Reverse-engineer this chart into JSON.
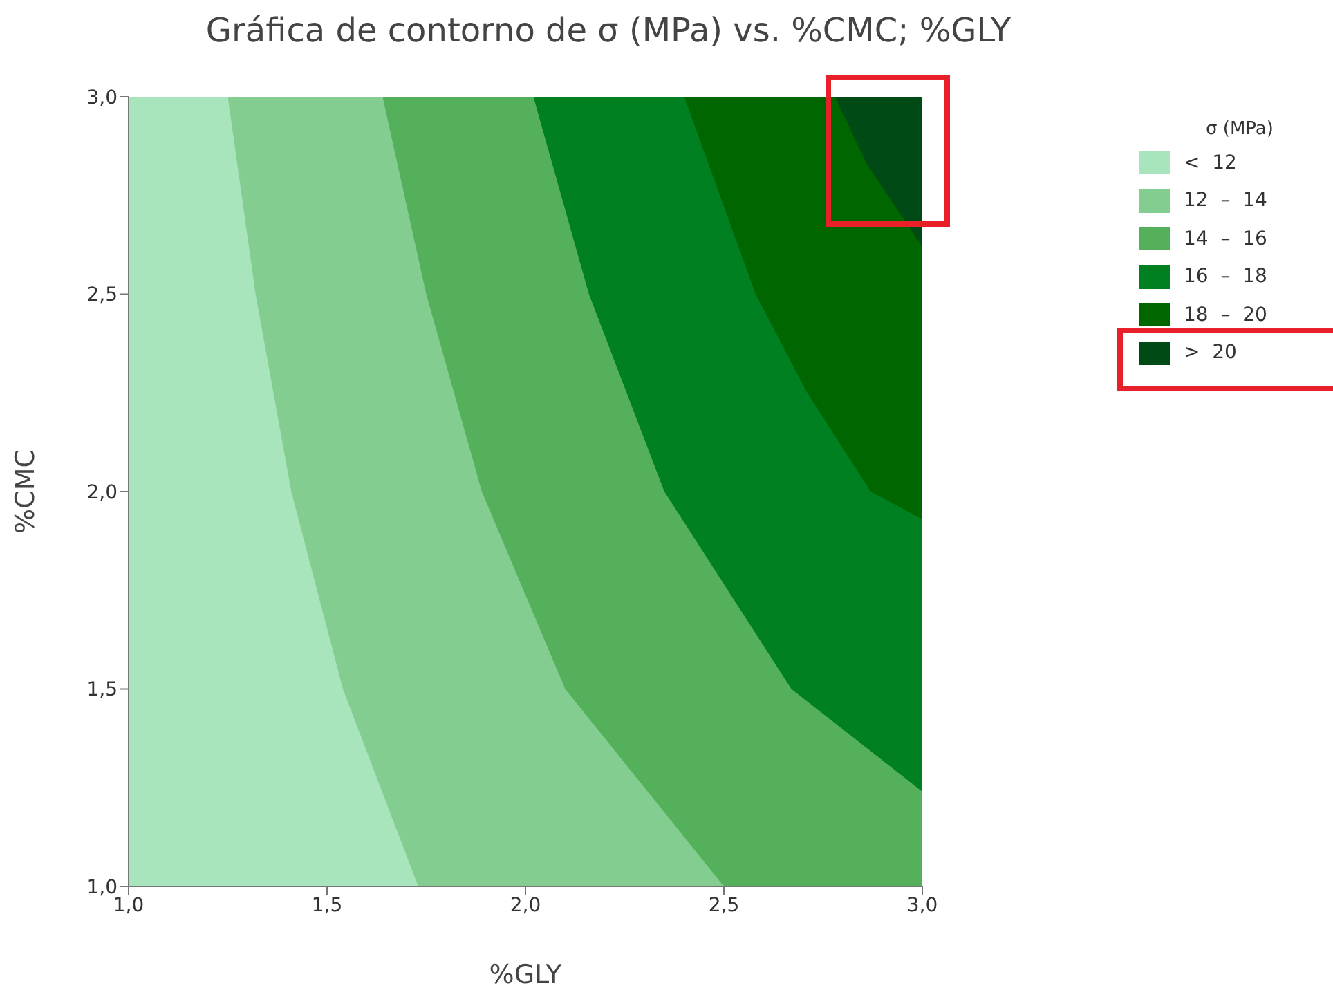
{
  "chart_data": {
    "type": "area",
    "title": "Gráfica de contorno de σ (MPa) vs. %CMC; %GLY",
    "xlabel": "%GLY",
    "ylabel": "%CMC",
    "legend_title": "σ (MPa)",
    "legend": "right",
    "grid": false,
    "xlim": [
      1,
      3
    ],
    "ylim": [
      1,
      3
    ],
    "xticks": [
      {
        "value": 1,
        "label": "1,0"
      },
      {
        "value": 1.5,
        "label": "1,5"
      },
      {
        "value": 2,
        "label": "2,0"
      },
      {
        "value": 2.5,
        "label": "2,5"
      },
      {
        "value": 3,
        "label": "3,0"
      }
    ],
    "yticks": [
      {
        "value": 1,
        "label": "1,0"
      },
      {
        "value": 1.5,
        "label": "1,5"
      },
      {
        "value": 2,
        "label": "2,0"
      },
      {
        "value": 2.5,
        "label": "2,5"
      },
      {
        "value": 3,
        "label": "3,0"
      }
    ],
    "series": [
      {
        "name": "<  12",
        "color": "#a8e5bd",
        "x": [
          1,
          1.25,
          1.32,
          1.41,
          1.54,
          1.73
        ],
        "values": [
          3,
          3,
          2.5,
          2,
          1.5,
          1
        ]
      },
      {
        "name": "12  –  14",
        "color": "#84cd91",
        "x": [
          1.25,
          1.64,
          1.75,
          1.89,
          2.1,
          2.5
        ],
        "values": [
          3,
          3,
          2.5,
          2,
          1.5,
          1
        ]
      },
      {
        "name": "14  –  16",
        "color": "#55b05c",
        "x": [
          1.64,
          2.02,
          2.16,
          2.35,
          2.67,
          3
        ],
        "values": [
          3,
          3,
          2.5,
          2,
          1.5,
          1.24
        ]
      },
      {
        "name": "16  –  18",
        "color": "#008020",
        "x": [
          2.02,
          2.4,
          2.58,
          2.71,
          2.87,
          3
        ],
        "values": [
          3,
          3,
          2.5,
          2.25,
          2,
          1.93
        ]
      },
      {
        "name": "18  –  20",
        "color": "#006600",
        "x": [
          2.4,
          2.78,
          2.86,
          3
        ],
        "values": [
          3,
          3,
          2.83,
          2.62
        ]
      },
      {
        "name": ">  20",
        "color": "#004a16",
        "x": [
          2.78,
          3
        ],
        "values": [
          3,
          3
        ]
      }
    ]
  }
}
